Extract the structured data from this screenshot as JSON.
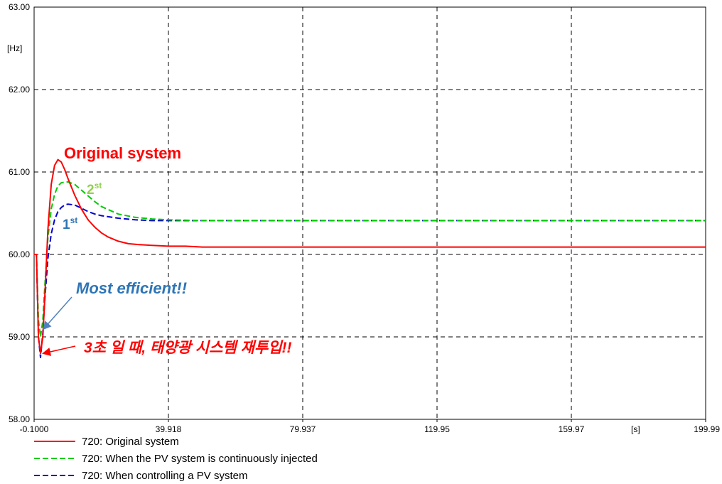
{
  "chart_data": {
    "type": "line",
    "x_unit": "[s]",
    "y_unit": "[Hz]",
    "xlim": [
      -0.1,
      199.99
    ],
    "ylim": [
      58.0,
      63.0
    ],
    "x_ticks": [
      "-0.1000",
      "39.918",
      "79.937",
      "119.95",
      "159.97",
      "199.99"
    ],
    "y_ticks": [
      "63.00",
      "62.00",
      "61.00",
      "60.00",
      "59.00",
      "58.00"
    ],
    "grid": true,
    "legend_position": "bottom",
    "series": [
      {
        "name": "720: Original system",
        "color": "#ff0000",
        "style": "solid",
        "x": [
          -0.1,
          0.6,
          1.2,
          1.8,
          2.5,
          3.0,
          4.0,
          5.0,
          6.0,
          7.0,
          8.0,
          9.0,
          10.0,
          12.0,
          14.0,
          16.0,
          18.0,
          20.0,
          22.0,
          25.0,
          28.0,
          31.0,
          35.0,
          40.0,
          45.0,
          50.0,
          60.0,
          80.0,
          120.0,
          160.0,
          199.99
        ],
        "y": [
          60.0,
          60.0,
          59.0,
          58.8,
          59.0,
          59.4,
          60.3,
          60.85,
          61.08,
          61.15,
          61.12,
          61.03,
          60.92,
          60.72,
          60.55,
          60.42,
          60.33,
          60.26,
          60.21,
          60.16,
          60.13,
          60.12,
          60.11,
          60.1,
          60.1,
          60.09,
          60.09,
          60.09,
          60.09,
          60.09,
          60.09
        ]
      },
      {
        "name": "720: When the PV system is continuously injected",
        "color": "#00cc00",
        "style": "dashed",
        "x": [
          -0.1,
          0.6,
          1.2,
          1.8,
          2.5,
          3.0,
          4.0,
          5.0,
          6.0,
          7.0,
          8.0,
          10.0,
          12.0,
          14.0,
          16.0,
          18.0,
          20.0,
          25.0,
          30.0,
          35.0,
          40.0,
          50.0,
          60.0,
          80.0,
          120.0,
          160.0,
          199.99
        ],
        "y": [
          60.0,
          60.0,
          59.2,
          59.0,
          59.2,
          59.55,
          60.2,
          60.55,
          60.73,
          60.83,
          60.87,
          60.88,
          60.85,
          60.78,
          60.71,
          60.64,
          60.58,
          60.49,
          60.45,
          60.43,
          60.42,
          60.41,
          60.41,
          60.41,
          60.41,
          60.41,
          60.41
        ]
      },
      {
        "name": "720: When controlling a PV system",
        "color": "#0000cc",
        "style": "dashed",
        "x": [
          -0.1,
          0.6,
          1.2,
          1.8,
          2.5,
          3.0,
          4.0,
          5.0,
          6.0,
          7.0,
          8.0,
          9.0,
          10.0,
          12.0,
          14.0,
          16.0,
          18.0,
          20.0,
          25.0,
          30.0,
          35.0,
          40.0,
          50.0,
          60.0,
          80.0,
          120.0,
          160.0,
          199.99
        ],
        "y": [
          60.0,
          60.0,
          59.0,
          58.75,
          59.05,
          59.4,
          59.95,
          60.25,
          60.42,
          60.52,
          60.57,
          60.6,
          60.61,
          60.6,
          60.56,
          60.52,
          60.49,
          60.47,
          60.44,
          60.42,
          60.41,
          60.41,
          60.41,
          60.41,
          60.41,
          60.41,
          60.41,
          60.41
        ]
      }
    ],
    "annotations": {
      "original": "Original system",
      "second_num": "2",
      "second_sup": "st",
      "first_num": "1",
      "first_sup": "st",
      "efficient": "Most efficient!!",
      "korean": "3초 일 때, 태양광 시스템 재투입!!"
    }
  },
  "colors": {
    "red": "#ff0000",
    "green_text": "#92d050",
    "blue_text": "#2e75b6",
    "arrow_blue": "#4f81bd",
    "arrow_red": "#ff0000"
  }
}
